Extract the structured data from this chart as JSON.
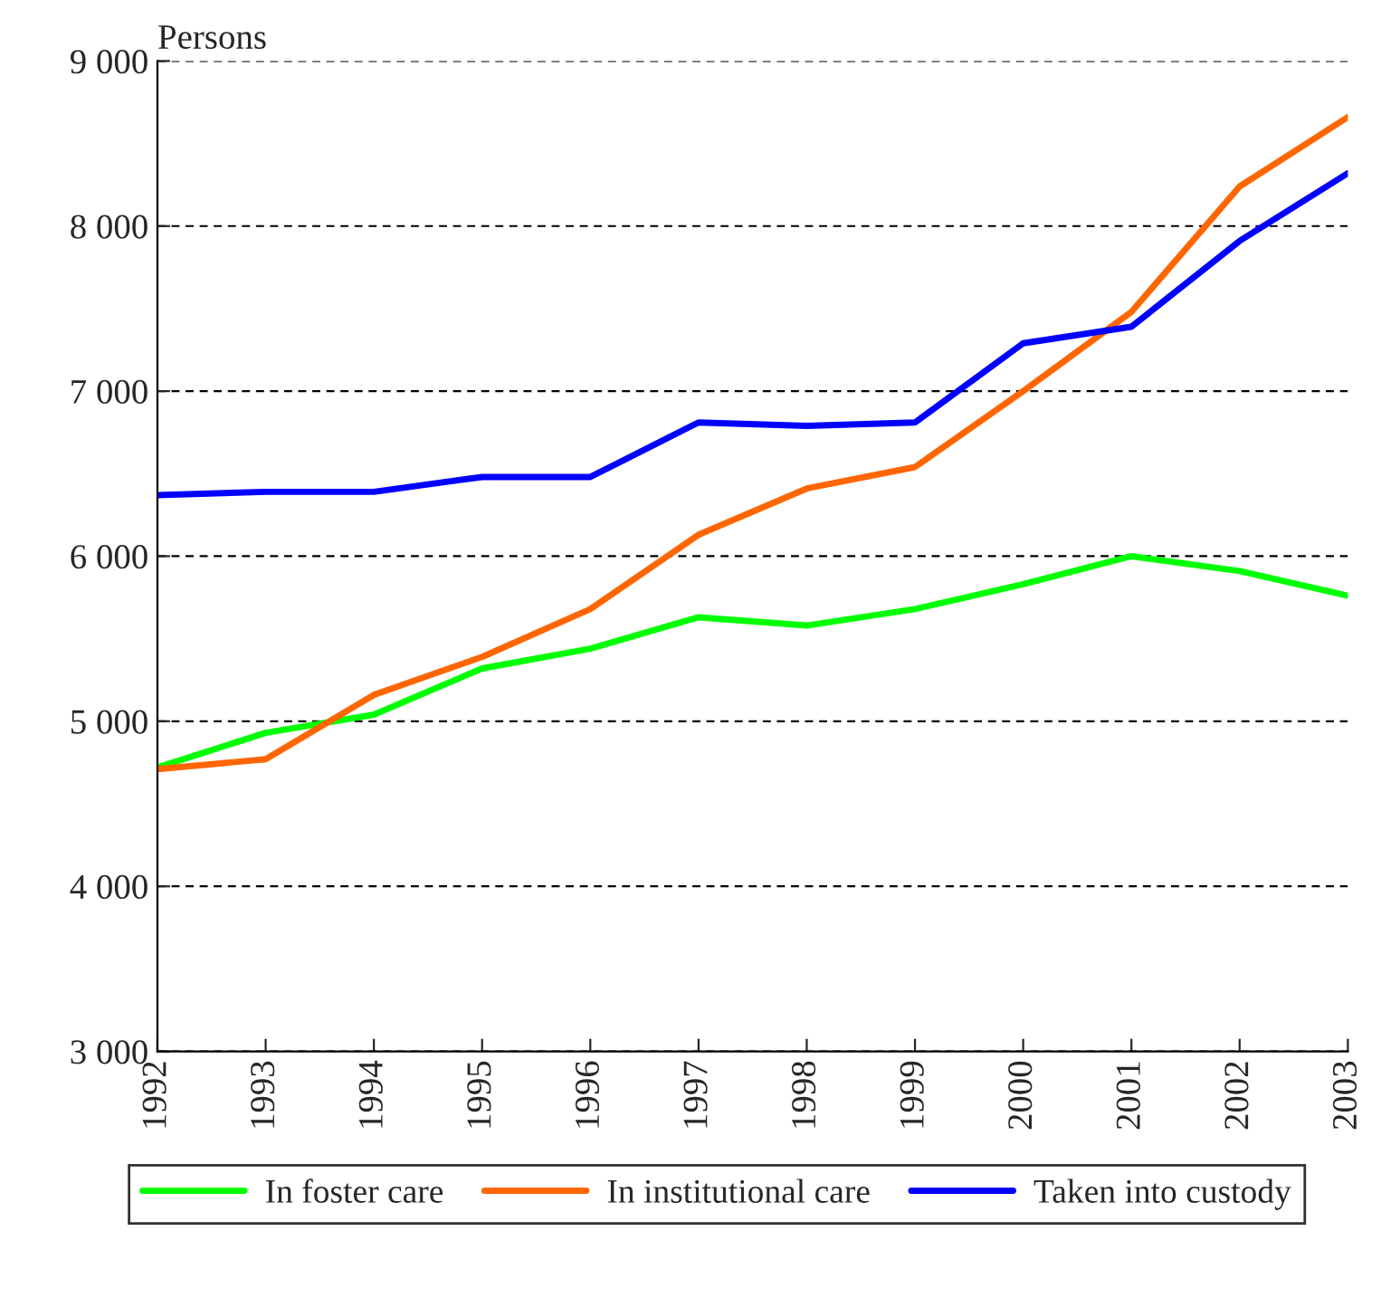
{
  "chart_data": {
    "type": "line",
    "ylabel": "Persons",
    "x": [
      1992,
      1993,
      1994,
      1995,
      1996,
      1997,
      1998,
      1999,
      2000,
      2001,
      2002,
      2003
    ],
    "series": [
      {
        "name": "In foster care",
        "color": "#00ff00",
        "values": [
          4720,
          4930,
          5040,
          5320,
          5440,
          5630,
          5580,
          5680,
          5830,
          6000,
          5910,
          5760
        ]
      },
      {
        "name": "In institutional care",
        "color": "#ff6600",
        "values": [
          4710,
          4770,
          5160,
          5390,
          5680,
          6130,
          6410,
          6540,
          7000,
          7480,
          8240,
          8660
        ]
      },
      {
        "name": "Taken into custody",
        "color": "#0000ff",
        "values": [
          6370,
          6390,
          6390,
          6480,
          6480,
          6810,
          6790,
          6810,
          7290,
          7390,
          7910,
          8320
        ]
      }
    ],
    "xlim": [
      1992,
      2003
    ],
    "xticks": [
      1992,
      1993,
      1994,
      1995,
      1996,
      1997,
      1998,
      1999,
      2000,
      2001,
      2002,
      2003
    ],
    "ylim": [
      3000,
      9000
    ],
    "yticks": [
      {
        "value": 3000,
        "label": "3 000"
      },
      {
        "value": 4000,
        "label": "4 000"
      },
      {
        "value": 5000,
        "label": "5 000"
      },
      {
        "value": 6000,
        "label": "6 000"
      },
      {
        "value": 7000,
        "label": "7 000"
      },
      {
        "value": 8000,
        "label": "8 000"
      },
      {
        "value": 9000,
        "label": "9 000"
      }
    ],
    "grid": "y",
    "legend": "bottom",
    "marker": "none",
    "line_style": "solid"
  }
}
